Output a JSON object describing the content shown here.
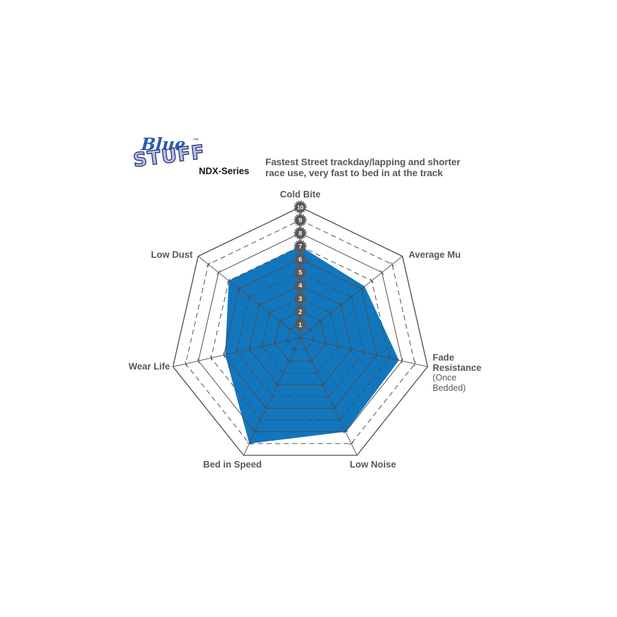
{
  "header": {
    "logo": {
      "word1": "Blue",
      "word2": "STUFF",
      "trademark": "™",
      "series": "NDX-Series"
    },
    "description_line1": "Fastest Street trackday/lapping and shorter",
    "description_line2": "race use, very fast to bed in at the track"
  },
  "chart_data": {
    "type": "radar",
    "title": "Bluestuff NDX-Series brake pad performance",
    "axes": [
      {
        "label": "Cold Bite",
        "value": 7
      },
      {
        "label": "Average Mu",
        "value": 6.3
      },
      {
        "label": "Fade Resistance",
        "sublabel": "(Once Bedded)",
        "value": 7.75
      },
      {
        "label": "Low Noise",
        "value": 8
      },
      {
        "label": "Bed in Speed",
        "value": 9
      },
      {
        "label": "Wear Life",
        "value": 5.9
      },
      {
        "label": "Low Dust",
        "value": 7
      }
    ],
    "series": [
      {
        "name": "Bluestuff NDX",
        "values": [
          7,
          6.3,
          7.75,
          8,
          9,
          5.9,
          7
        ]
      }
    ],
    "scale": {
      "min": 0,
      "max": 10
    },
    "tick_labels": [
      "1",
      "2",
      "3",
      "4",
      "5",
      "6",
      "7",
      "8",
      "9",
      "10"
    ],
    "layout": {
      "grid": "heptagon rings 1-10, odd rings dashed",
      "legend": "none"
    },
    "colors": {
      "series_fill": "#1276bd",
      "grid_line": "#4c4c4e",
      "badge_fill": "#58585a",
      "badge_text": "#ffffff",
      "label_text": "#58585a"
    }
  }
}
